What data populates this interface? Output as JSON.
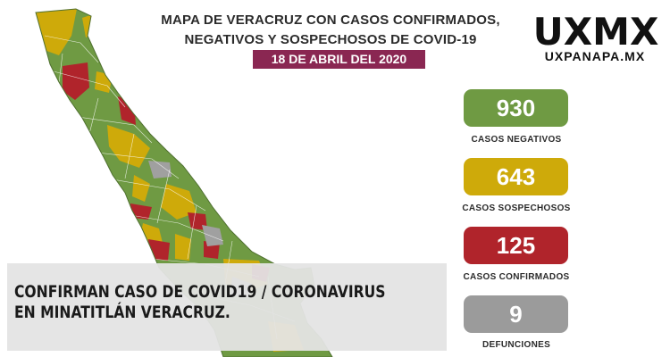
{
  "title_line1": "MAPA DE VERACRUZ CON CASOS CONFIRMADOS,",
  "title_line2": "NEGATIVOS Y SOSPECHOSOS DE COVID-19",
  "date": "18 DE ABRIL DEL 2020",
  "logo": {
    "mark": "UXMX",
    "site": "UXPANAPA.MX"
  },
  "stats": [
    {
      "value": "930",
      "label": "CASOS NEGATIVOS",
      "color": "#6f9a43"
    },
    {
      "value": "643",
      "label": "CASOS SOSPECHOSOS",
      "color": "#ceaa0a"
    },
    {
      "value": "125",
      "label": "CASOS CONFIRMADOS",
      "color": "#b0242b"
    },
    {
      "value": "9",
      "label": "DEFUNCIONES",
      "color": "#9b9b9b"
    }
  ],
  "legend_colors": {
    "negative": "#6f9a43",
    "suspected": "#ceaa0a",
    "confirmed": "#b0242b",
    "no_data": "#a0a0a0"
  },
  "headline": {
    "line1": "CONFIRMAN CASO DE COVID19 / CORONAVIRUS",
    "line2": "EN MINATITLÁN VERACRUZ."
  }
}
